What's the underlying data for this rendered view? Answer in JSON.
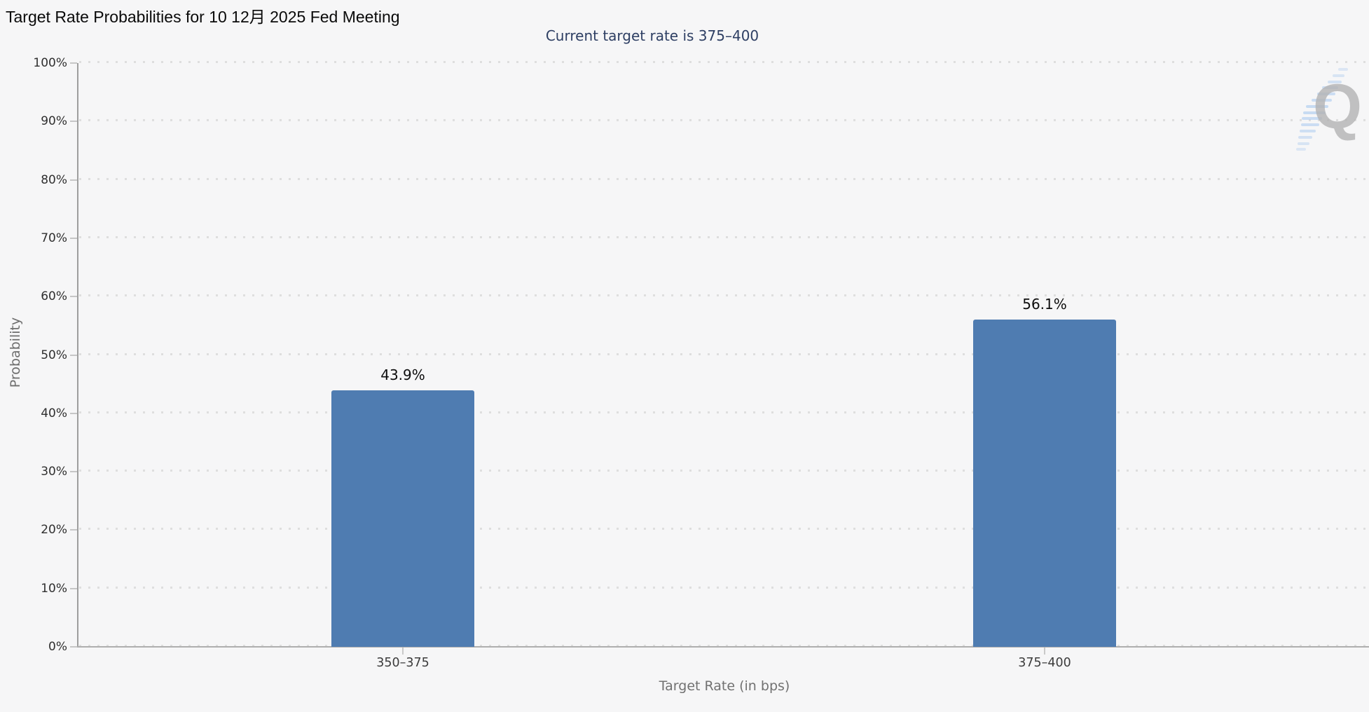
{
  "title": "Target Rate Probabilities for 10 12月 2025 Fed Meeting",
  "subtitle": "Current target rate is 375–400",
  "watermark": {
    "letter": "Q",
    "name": "quikstrike-logo"
  },
  "colors": {
    "background": "#f6f6f7",
    "bar": "#4f7cb1",
    "subtitle_text": "#2e3f63",
    "gridline_dots": "#dedede",
    "watermark_q": "#b2b2b2",
    "watermark_swoosh": "#a9c9ef"
  },
  "chart_data": {
    "type": "bar",
    "title": "Target Rate Probabilities for 10 12月 2025 Fed Meeting",
    "subtitle": "Current target rate is 375–400",
    "categories": [
      "350–375",
      "375–400"
    ],
    "values": [
      43.9,
      56.1
    ],
    "value_labels": [
      "43.9%",
      "56.1%"
    ],
    "xlabel": "Target Rate (in bps)",
    "ylabel": "Probability",
    "ylim": [
      0,
      100
    ],
    "ytick_step": 10,
    "ytick_suffix": "%",
    "ytick_labels": [
      "0%",
      "10%",
      "20%",
      "30%",
      "40%",
      "50%",
      "60%",
      "70%",
      "80%",
      "90%",
      "100%"
    ],
    "grid": "dotted horizontal",
    "legend": "none",
    "bar_color": "#4f7cb1"
  }
}
